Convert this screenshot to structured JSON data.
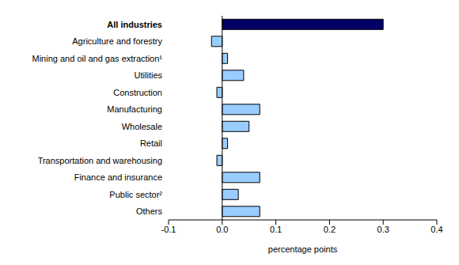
{
  "chart_data": {
    "type": "bar",
    "orientation": "horizontal",
    "x_label": "percentage points",
    "categories": [
      "All industries",
      "Agriculture and forestry",
      "Mining and oil and gas extraction¹",
      "Utilities",
      "Construction",
      "Manufacturing",
      "Wholesale",
      "Retail",
      "Transportation and warehousing",
      "Finance and insurance",
      "Public sector²",
      "Others"
    ],
    "values": [
      0.3,
      -0.02,
      0.01,
      0.04,
      -0.01,
      0.07,
      0.05,
      0.01,
      -0.01,
      0.07,
      0.03,
      0.07
    ],
    "colors": [
      "#000066",
      "#99ccff",
      "#99ccff",
      "#99ccff",
      "#99ccff",
      "#99ccff",
      "#99ccff",
      "#99ccff",
      "#99ccff",
      "#99ccff",
      "#99ccff",
      "#99ccff"
    ],
    "xlim": [
      -0.1,
      0.4
    ],
    "xticks": [
      -0.1,
      {
        "value": 0,
        "label": "0.0"
      },
      0.1,
      0.2,
      0.3,
      0.4
    ],
    "grid": false
  }
}
